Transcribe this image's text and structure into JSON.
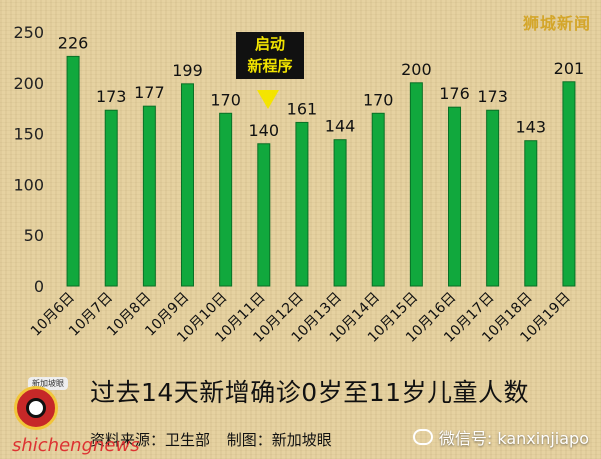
{
  "brand": "狮城新闻",
  "callout": [
    "启动",
    "新程序"
  ],
  "headline": "过去14天新增确诊0岁至11岁儿童人数",
  "source": [
    "资料来源：卫生部",
    "制图：新加坡眼"
  ],
  "logo_text": "新加坡眼",
  "watermarks": {
    "left": "shichengnews",
    "right": "微信号: kanxinjiapo"
  },
  "chart_data": {
    "type": "bar",
    "categories": [
      "10月6日",
      "10月7日",
      "10月8日",
      "10月9日",
      "10月10日",
      "10月11日",
      "10月12日",
      "10月13日",
      "10月14日",
      "10月15日",
      "10月16日",
      "10月17日",
      "10月18日",
      "10月19日"
    ],
    "values": [
      226,
      173,
      177,
      199,
      170,
      140,
      161,
      144,
      170,
      200,
      176,
      173,
      143,
      201
    ],
    "ylim": [
      0,
      250
    ],
    "yticks": [
      0,
      50,
      100,
      150,
      200,
      250
    ],
    "grid": false,
    "colors": {
      "bar": "#11a83d",
      "bar_border": "#0a6f25"
    }
  }
}
